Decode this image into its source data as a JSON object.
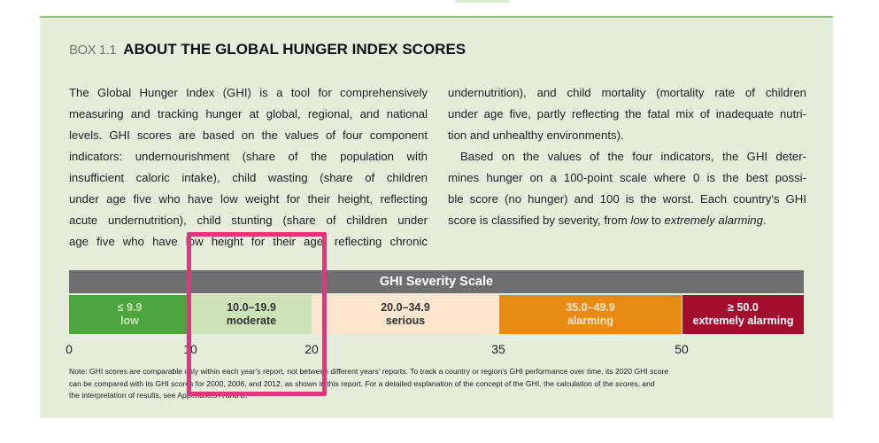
{
  "box": {
    "label": "BOX 1.1",
    "title": "ABOUT THE GLOBAL HUNGER INDEX SCORES"
  },
  "column_1": [
    "The Global Hunger Index (GHI) is a tool for comprehensively",
    "measuring and tracking hunger at global, regional, and national",
    "levels. GHI scores are based on the values of four component",
    "indicators: undernourishment (share of the population with",
    "insufficient caloric intake), child wasting (share of children",
    "under age five who have low weight for their height, reflecting",
    "acute undernutrition), child stunting (share of children under",
    "age five who have low height for their age, reflecting chronic"
  ],
  "column_2": [
    "undernutrition), and child mortality (mortality rate of children",
    "under age five, partly reflecting the fatal mix of inadequate nutri-",
    "tion and unhealthy environments).",
    "Based on the values of the four indicators, the GHI deter-",
    "mines hunger on a 100-point scale where 0 is the best possi-",
    "ble score (no hunger) and 100 is the worst. Each country's GHI"
  ],
  "column_2_last": [
    "score is classified by severity, from ",
    "low",
    " to ",
    "extremely alarming",
    "."
  ],
  "scale": {
    "title": "GHI Severity Scale",
    "cells": [
      {
        "range": "≤ 9.9",
        "label": "low"
      },
      {
        "range": "10.0–19.9",
        "label": "moderate"
      },
      {
        "range": "20.0–34.9",
        "label": "serious"
      },
      {
        "range": "35.0–49.9",
        "label": "alarming"
      },
      {
        "range": "≥ 50.0",
        "label": "extremely alarming"
      }
    ],
    "ticks": [
      0,
      10,
      20,
      35,
      50
    ]
  },
  "note": [
    "Note: GHI scores are comparable only within each year's report, not between different years' reports. To track a country or region's GHI performance over time, its 2020 GHI score",
    "can be compared with its GHI scores for 2000, 2006, and 2012, as shown in this report. For a detailed explanation of the concept of the GHI, the calculation of the scores, and",
    "the interpretation of results, see Appendixes A and B."
  ]
}
